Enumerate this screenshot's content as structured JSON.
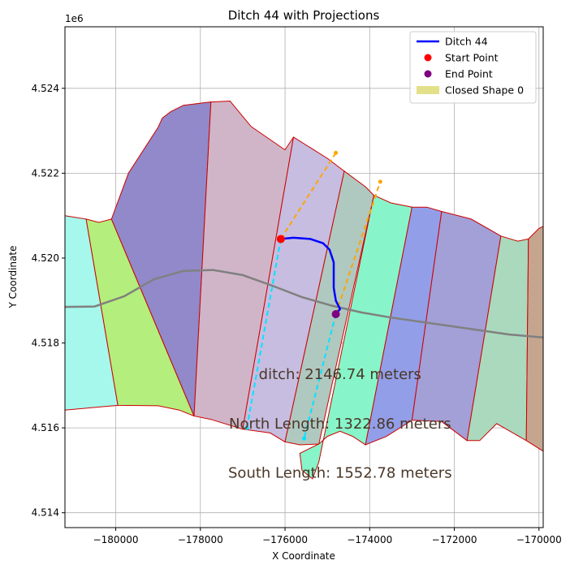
{
  "chart_data": {
    "type": "map",
    "title": "Ditch 44 with Projections",
    "xlabel": "X Coordinate",
    "ylabel": "Y Coordinate",
    "y_offset_label": "1e6",
    "xlim": [
      -181200,
      -169900
    ],
    "ylim": [
      4.51365,
      4.52545
    ],
    "grid": true,
    "xticks": [
      -180000,
      -178000,
      -176000,
      -174000,
      -172000,
      -170000
    ],
    "xtick_labels": [
      "−180000",
      "−178000",
      "−176000",
      "−174000",
      "−172000",
      "−170000"
    ],
    "yticks": [
      4.514,
      4.516,
      4.518,
      4.52,
      4.522,
      4.524
    ],
    "ytick_labels": [
      "4.514",
      "4.516",
      "4.518",
      "4.520",
      "4.522",
      "4.524"
    ],
    "legend_position": "top-right",
    "legend": [
      {
        "label": "Ditch 44",
        "kind": "line",
        "color": "#0000ff"
      },
      {
        "label": "Start Point",
        "kind": "marker",
        "color": "#ff0000"
      },
      {
        "label": "End Point",
        "kind": "marker",
        "color": "#800080"
      },
      {
        "label": "Closed Shape 0",
        "kind": "patch",
        "color": "#e3e08a"
      }
    ],
    "polygons": [
      {
        "color": "#a6f7ec",
        "points": [
          [
            -181200,
            4.521
          ],
          [
            -180700,
            4.52092
          ],
          [
            -179950,
            4.51653
          ],
          [
            -181200,
            4.51642
          ]
        ]
      },
      {
        "color": "#b4ee7c",
        "points": [
          [
            -180700,
            4.52092
          ],
          [
            -180400,
            4.52084
          ],
          [
            -180100,
            4.52092
          ],
          [
            -178150,
            4.51628
          ],
          [
            -178500,
            4.51642
          ],
          [
            -179000,
            4.51652
          ],
          [
            -179950,
            4.51653
          ]
        ]
      },
      {
        "color": "#9189c9",
        "points": [
          [
            -180100,
            4.52092
          ],
          [
            -179700,
            4.522
          ],
          [
            -179000,
            4.52308
          ],
          [
            -178900,
            4.5233
          ],
          [
            -178700,
            4.52345
          ],
          [
            -178400,
            4.5236
          ],
          [
            -177750,
            4.52368
          ],
          [
            -178150,
            4.51628
          ]
        ]
      },
      {
        "color": "#d0b5c8",
        "points": [
          [
            -177750,
            4.52368
          ],
          [
            -177300,
            4.5237
          ],
          [
            -176800,
            4.5231
          ],
          [
            -176000,
            4.52255
          ],
          [
            -175800,
            4.52285
          ],
          [
            -177000,
            4.51597
          ],
          [
            -177750,
            4.5162
          ],
          [
            -178150,
            4.51628
          ]
        ]
      },
      {
        "color": "#c6bde0",
        "points": [
          [
            -175800,
            4.52285
          ],
          [
            -175000,
            4.52235
          ],
          [
            -174600,
            4.52205
          ],
          [
            -176000,
            4.51567
          ],
          [
            -176350,
            4.51588
          ],
          [
            -177000,
            4.51597
          ]
        ]
      },
      {
        "color": "#afc8c0",
        "points": [
          [
            -174600,
            4.52205
          ],
          [
            -174100,
            4.52168
          ],
          [
            -173900,
            4.52148
          ],
          [
            -175200,
            4.51562
          ],
          [
            -175650,
            4.5156
          ],
          [
            -176000,
            4.51567
          ]
        ]
      },
      {
        "color": "#87f5c9",
        "points": [
          [
            -173900,
            4.52148
          ],
          [
            -173500,
            4.5213
          ],
          [
            -173000,
            4.5212
          ],
          [
            -174100,
            4.5156
          ],
          [
            -174400,
            4.5158
          ],
          [
            -174700,
            4.51592
          ],
          [
            -175000,
            4.5158
          ],
          [
            -175200,
            4.51562
          ],
          [
            -175450,
            4.5155
          ],
          [
            -175650,
            4.5154
          ],
          [
            -175600,
            4.515
          ],
          [
            -175350,
            4.5148
          ],
          [
            -175200,
            4.5152
          ]
        ]
      },
      {
        "color": "#939ee8",
        "points": [
          [
            -173000,
            4.5212
          ],
          [
            -172650,
            4.5212
          ],
          [
            -172300,
            4.5211
          ],
          [
            -173000,
            4.51618
          ],
          [
            -173600,
            4.5158
          ],
          [
            -174100,
            4.5156
          ]
        ]
      },
      {
        "color": "#a39fd7",
        "points": [
          [
            -172300,
            4.5211
          ],
          [
            -171600,
            4.52092
          ],
          [
            -170900,
            4.52052
          ],
          [
            -171700,
            4.5157
          ],
          [
            -172300,
            4.51615
          ],
          [
            -173000,
            4.51618
          ]
        ]
      },
      {
        "color": "#aad9bd",
        "points": [
          [
            -170900,
            4.52052
          ],
          [
            -170500,
            4.5204
          ],
          [
            -170250,
            4.52045
          ],
          [
            -170300,
            4.5157
          ],
          [
            -171000,
            4.5161
          ],
          [
            -171400,
            4.5157
          ],
          [
            -171700,
            4.5157
          ]
        ]
      },
      {
        "color": "#c6a58f",
        "points": [
          [
            -170250,
            4.52045
          ],
          [
            -170000,
            4.5207
          ],
          [
            -169900,
            4.52075
          ],
          [
            -169900,
            4.51545
          ],
          [
            -170300,
            4.5157
          ]
        ]
      }
    ],
    "outline_color": "#cc0000",
    "trend_line": {
      "color": "#808080",
      "points": [
        [
          -181200,
          4.51885
        ],
        [
          -180500,
          4.51886
        ],
        [
          -179800,
          4.5191
        ],
        [
          -179100,
          4.5195
        ],
        [
          -178400,
          4.5197
        ],
        [
          -177700,
          4.51972
        ],
        [
          -177000,
          4.5196
        ],
        [
          -176300,
          4.51935
        ],
        [
          -175600,
          4.51908
        ],
        [
          -174900,
          4.51888
        ],
        [
          -174200,
          4.51872
        ],
        [
          -173500,
          4.5186
        ],
        [
          -172800,
          4.5185
        ],
        [
          -172100,
          4.5184
        ],
        [
          -171400,
          4.5183
        ],
        [
          -170700,
          4.5182
        ],
        [
          -169900,
          4.51813
        ]
      ]
    },
    "ditch": {
      "name": "Ditch 44",
      "color": "#0000ff",
      "points": [
        [
          -176100,
          4.52045
        ],
        [
          -175800,
          4.52048
        ],
        [
          -175400,
          4.52045
        ],
        [
          -175100,
          4.52035
        ],
        [
          -174950,
          4.5202
        ],
        [
          -174850,
          4.5199
        ],
        [
          -174850,
          4.5193
        ],
        [
          -174800,
          4.519
        ],
        [
          -174700,
          4.5188
        ],
        [
          -174800,
          4.51868
        ]
      ]
    },
    "start_point": {
      "x": -176100,
      "y": 4.52045,
      "color": "#ff0000"
    },
    "end_point": {
      "x": -174800,
      "y": 4.51868,
      "color": "#800080"
    },
    "projections": [
      {
        "color": "#ffa500",
        "points": [
          [
            -176100,
            4.52045
          ],
          [
            -174800,
            4.52248
          ]
        ]
      },
      {
        "color": "#ffa500",
        "points": [
          [
            -174800,
            4.51868
          ],
          [
            -173750,
            4.5218
          ]
        ]
      },
      {
        "color": "#00e5ff",
        "points": [
          [
            -176100,
            4.52045
          ],
          [
            -176900,
            4.516
          ]
        ]
      },
      {
        "color": "#00e5ff",
        "points": [
          [
            -174800,
            4.51868
          ],
          [
            -175550,
            4.51575
          ]
        ]
      }
    ],
    "annotations": [
      {
        "text": "ditch: 2146.74 meters",
        "x": -174700,
        "y": 4.51715
      },
      {
        "text": "North Length: 1322.86 meters",
        "x": -174700,
        "y": 4.51598
      },
      {
        "text": "South Length: 1552.78 meters",
        "x": -174700,
        "y": 4.51483
      }
    ]
  }
}
